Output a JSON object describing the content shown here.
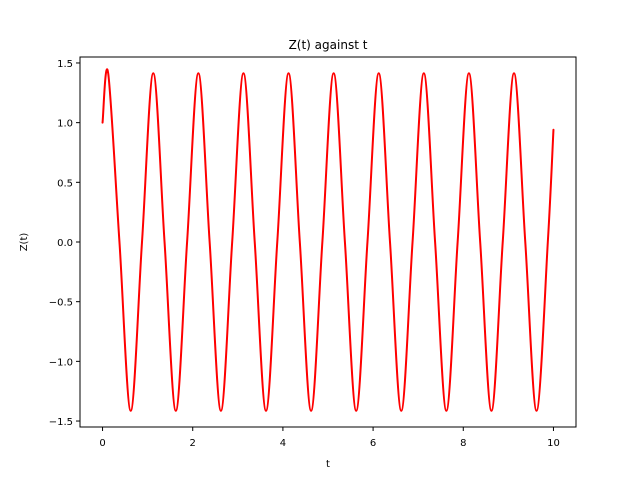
{
  "chart_data": {
    "type": "line",
    "title": "Z(t) against t",
    "xlabel": "t",
    "ylabel": "Z(t)",
    "xlim": [
      -0.5,
      10.5
    ],
    "ylim": [
      -1.55,
      1.55
    ],
    "xticks": [
      0,
      2,
      4,
      6,
      8,
      10
    ],
    "xtick_labels": [
      "0",
      "2",
      "4",
      "6",
      "8",
      "10"
    ],
    "yticks": [
      -1.5,
      -1.0,
      -0.5,
      0.0,
      0.5,
      1.0,
      1.5
    ],
    "ytick_labels": [
      "−1.5",
      "−1.0",
      "−0.5",
      "0.0",
      "0.5",
      "1.0",
      "1.5"
    ],
    "grid": false,
    "series": [
      {
        "color": "#ff0000",
        "x": [
          0,
          0.125,
          0.375,
          0.625,
          0.875,
          1.125,
          1.375,
          1.625,
          1.875,
          2.125,
          2.375,
          2.625,
          2.875,
          3.125,
          3.375,
          3.625,
          3.875,
          4.125,
          4.375,
          4.625,
          4.875,
          5.125,
          5.375,
          5.625,
          5.875,
          6.125,
          6.375,
          6.625,
          6.875,
          7.125,
          7.375,
          7.625,
          7.875,
          8.125,
          8.375,
          8.625,
          8.875,
          9.125,
          9.375,
          9.625,
          9.875,
          10.0
        ],
        "y": [
          1.0,
          1.414,
          0.0,
          -1.414,
          0.0,
          1.414,
          0.0,
          -1.414,
          0.0,
          1.414,
          0.0,
          -1.414,
          0.0,
          1.414,
          0.0,
          -1.414,
          0.0,
          1.414,
          0.0,
          -1.414,
          0.0,
          1.414,
          0.0,
          -1.414,
          0.0,
          1.414,
          0.0,
          -1.414,
          0.0,
          1.414,
          0.0,
          -1.414,
          0.0,
          1.414,
          0.0,
          -1.414,
          0.0,
          1.414,
          0.0,
          -1.414,
          0.0,
          0.94
        ]
      }
    ]
  }
}
